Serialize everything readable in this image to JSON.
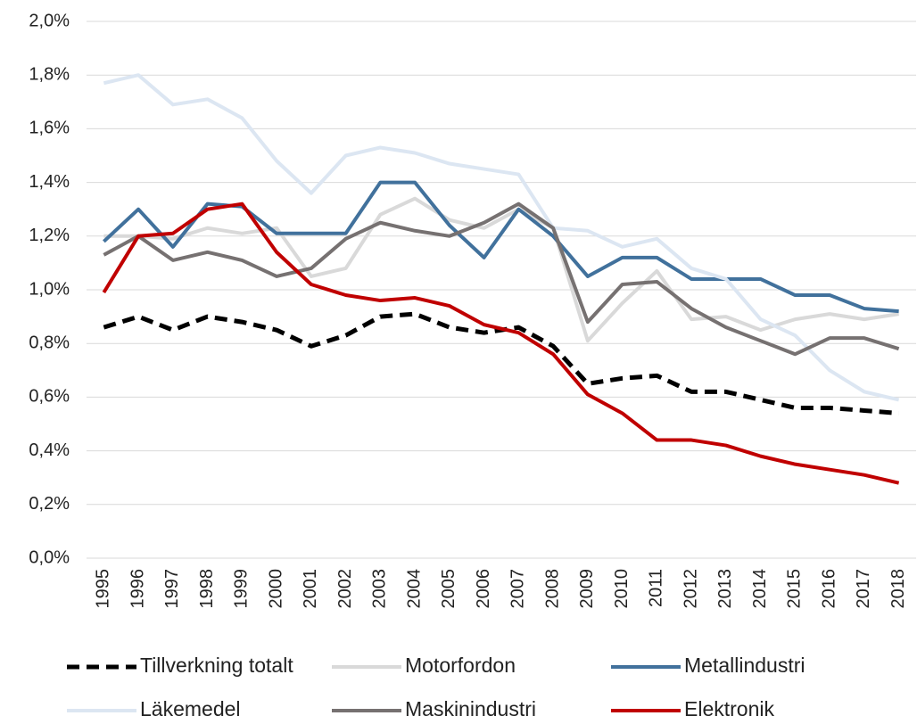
{
  "chart_data": {
    "type": "line",
    "categories": [
      "1995",
      "1996",
      "1997",
      "1998",
      "1999",
      "2000",
      "2001",
      "2002",
      "2003",
      "2004",
      "2005",
      "2006",
      "2007",
      "2008",
      "2009",
      "2010",
      "2011",
      "2012",
      "2013",
      "2014",
      "2015",
      "2016",
      "2017",
      "2018"
    ],
    "series": [
      {
        "name": "Tillverkning totalt",
        "color": "#000000",
        "dash": true,
        "values": [
          0.86,
          0.9,
          0.85,
          0.9,
          0.88,
          0.85,
          0.79,
          0.83,
          0.9,
          0.91,
          0.86,
          0.84,
          0.86,
          0.79,
          0.65,
          0.67,
          0.68,
          0.62,
          0.62,
          0.59,
          0.56,
          0.56,
          0.55,
          0.54
        ]
      },
      {
        "name": "Motorfordon",
        "color": "#d9d9d9",
        "values": [
          1.2,
          1.2,
          1.19,
          1.23,
          1.21,
          1.23,
          1.05,
          1.08,
          1.28,
          1.34,
          1.26,
          1.23,
          1.3,
          1.23,
          0.81,
          0.95,
          1.07,
          0.89,
          0.9,
          0.85,
          0.89,
          0.91,
          0.89,
          0.91
        ]
      },
      {
        "name": "Metallindustri",
        "color": "#41719c",
        "values": [
          1.18,
          1.3,
          1.16,
          1.32,
          1.31,
          1.21,
          1.21,
          1.21,
          1.4,
          1.4,
          1.24,
          1.12,
          1.3,
          1.2,
          1.05,
          1.12,
          1.12,
          1.04,
          1.04,
          1.04,
          0.98,
          0.98,
          0.93,
          0.92
        ]
      },
      {
        "name": "Läkemedel",
        "color": "#dce6f2",
        "values": [
          1.77,
          1.8,
          1.69,
          1.71,
          1.64,
          1.48,
          1.36,
          1.5,
          1.53,
          1.51,
          1.47,
          1.45,
          1.43,
          1.23,
          1.22,
          1.16,
          1.19,
          1.08,
          1.04,
          0.89,
          0.83,
          0.7,
          0.62,
          0.59
        ]
      },
      {
        "name": "Maskinindustri",
        "color": "#767171",
        "values": [
          1.13,
          1.2,
          1.11,
          1.14,
          1.11,
          1.05,
          1.08,
          1.19,
          1.25,
          1.22,
          1.2,
          1.25,
          1.32,
          1.23,
          0.88,
          1.02,
          1.03,
          0.93,
          0.86,
          0.81,
          0.76,
          0.82,
          0.82,
          0.78
        ]
      },
      {
        "name": "Elektronik",
        "color": "#c00000",
        "values": [
          0.99,
          1.2,
          1.21,
          1.3,
          1.32,
          1.14,
          1.02,
          0.98,
          0.96,
          0.97,
          0.94,
          0.87,
          0.84,
          0.76,
          0.61,
          0.54,
          0.44,
          0.44,
          0.42,
          0.38,
          0.35,
          0.33,
          0.31,
          0.28
        ]
      }
    ],
    "ylim": [
      0,
      2.0
    ],
    "yticks": [
      {
        "value": 0,
        "label": "0,0%"
      },
      {
        "value": 0.2,
        "label": "0,2%"
      },
      {
        "value": 0.4,
        "label": "0,4%"
      },
      {
        "value": 0.6,
        "label": "0,6%"
      },
      {
        "value": 0.8,
        "label": "0,8%"
      },
      {
        "value": 1.0,
        "label": "1,0%"
      },
      {
        "value": 1.2,
        "label": "1,2%"
      },
      {
        "value": 1.4,
        "label": "1,4%"
      },
      {
        "value": 1.6,
        "label": "1,6%"
      },
      {
        "value": 1.8,
        "label": "1,8%"
      },
      {
        "value": 2.0,
        "label": "2,0%"
      }
    ],
    "grid": true,
    "legend": "bottom"
  }
}
